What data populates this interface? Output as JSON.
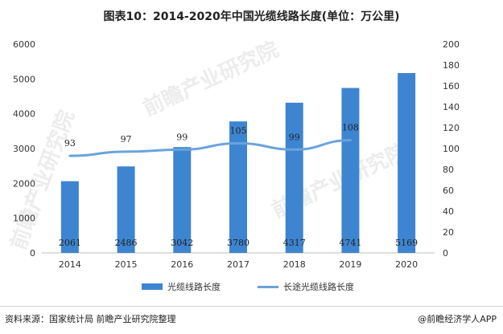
{
  "title": "图表10：2014-2020年中国光缆线路长度(单位：万公里)",
  "chart_data": {
    "type": "bar",
    "title": "图表10：2014-2020年中国光缆线路长度(单位：万公里)",
    "categories": [
      "2014",
      "2015",
      "2016",
      "2017",
      "2018",
      "2019",
      "2020"
    ],
    "series": [
      {
        "name": "光缆线路长度",
        "type": "bar",
        "axis": "left",
        "values": [
          2061,
          2486,
          3042,
          3780,
          4317,
          4741,
          5169
        ]
      },
      {
        "name": "长途光缆线路长度",
        "type": "line",
        "axis": "right",
        "values": [
          93,
          97,
          99,
          105,
          99,
          108,
          null
        ]
      }
    ],
    "y_left": {
      "ticks": [
        0,
        1000,
        2000,
        3000,
        4000,
        5000,
        6000
      ],
      "range": [
        0,
        6000
      ]
    },
    "y_right": {
      "ticks": [
        0,
        20,
        40,
        60,
        80,
        100,
        120,
        140,
        160,
        180,
        200
      ],
      "range": [
        0,
        200
      ]
    },
    "legend_position": "bottom",
    "bar_color": "#3d85d1",
    "line_color": "#6aa3dd"
  },
  "legend": {
    "bar_label": "光缆线路长度",
    "line_label": "长途光缆线路长度"
  },
  "footer": {
    "source": "资料来源：国家统计局 前瞻产业研究院整理",
    "brand": "@前瞻经济学人APP"
  },
  "watermarks": {
    "a": "前瞻产业研究院",
    "b": "前瞻产业研究院",
    "c": "前瞻产业研究院"
  }
}
